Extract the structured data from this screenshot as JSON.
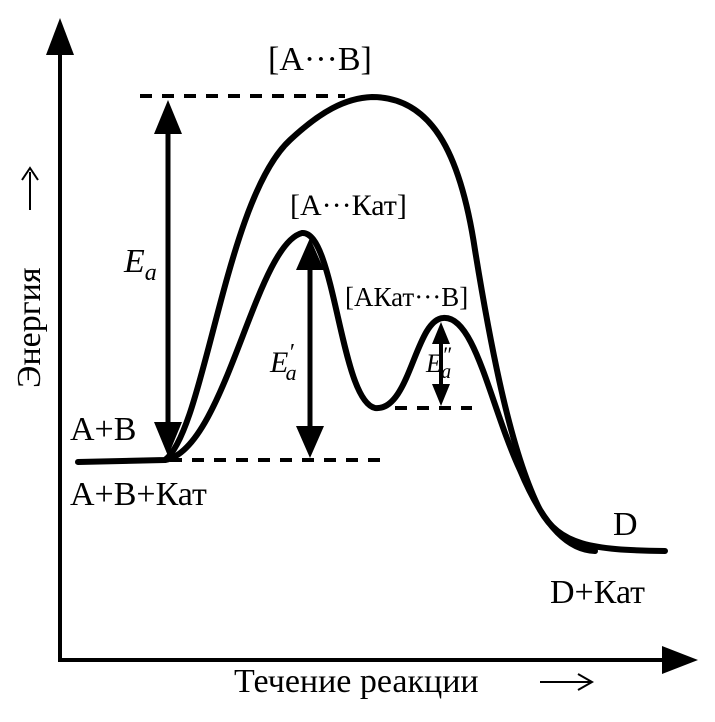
{
  "axes": {
    "y_label": "Энергия",
    "x_label": "Течение реакции"
  },
  "states": {
    "transition_uncatalyzed": "[A···B]",
    "transition_catalyst_1": "[A···Кат]",
    "transition_catalyst_2": "[AКат···B]",
    "reactants": "A+B",
    "reactants_catalyst": "A+B+Кат",
    "product": "D",
    "product_catalyst": "D+Кат"
  },
  "activation": {
    "main_symbol": "E",
    "main_sub": "a",
    "cat1_symbol": "E",
    "cat1_sub": "a",
    "cat1_prime": "′",
    "cat2_symbol": "E",
    "cat2_sub": "a",
    "cat2_prime": "″"
  }
}
